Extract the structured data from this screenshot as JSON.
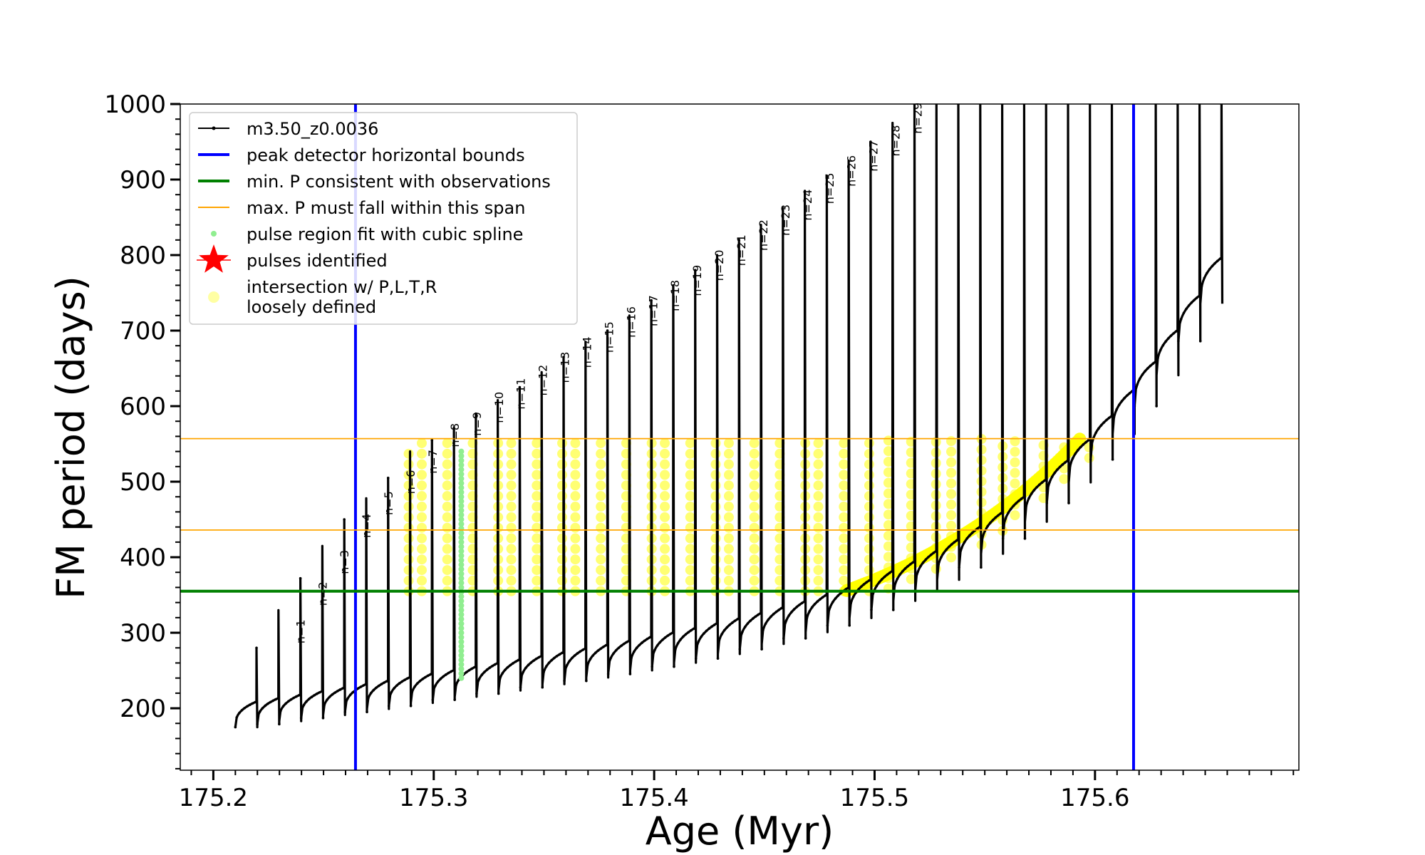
{
  "chart_data": {
    "type": "line",
    "title": "",
    "xlabel": "Age (Myr)",
    "ylabel": "FM period (days)",
    "xlim": [
      175.185,
      175.6925
    ],
    "ylim": [
      118,
      1000
    ],
    "xticks": [
      "175.2",
      "175.3",
      "175.4",
      "175.5",
      "175.6"
    ],
    "xtick_values": [
      175.2,
      175.3,
      175.4,
      175.5,
      175.6
    ],
    "yticks": [
      "200",
      "300",
      "400",
      "500",
      "600",
      "700",
      "800",
      "900",
      "1000"
    ],
    "ytick_values": [
      200,
      300,
      400,
      500,
      600,
      700,
      800,
      900,
      1000
    ],
    "series": [
      {
        "name": "m3.50_z0.0036",
        "color": "#000000",
        "style": "black line with small dot markers",
        "age_start": 175.21,
        "age_pulse_spacing": 0.00995,
        "base_period_start": 195,
        "pulse_spike_peaks": [
          280,
          330,
          372,
          415,
          450,
          478,
          505,
          540,
          555,
          572,
          590,
          608,
          625,
          645,
          665,
          685,
          700,
          720,
          740,
          760,
          780,
          800,
          820,
          840,
          862,
          885,
          905,
          925,
          950,
          975
        ],
        "final_age": 175.655
      }
    ],
    "pulse_labels": [
      "n=1",
      "n=2",
      "n=3",
      "n=4",
      "n=5",
      "n=6",
      "n=7",
      "n=8",
      "n=9",
      "n=10",
      "n=11",
      "n=12",
      "n=13",
      "n=14",
      "n=15",
      "n=16",
      "n=17",
      "n=18",
      "n=19",
      "n=20",
      "n=21",
      "n=22",
      "n=23",
      "n=24",
      "n=25",
      "n=26",
      "n=27",
      "n=28",
      "n=29"
    ],
    "pulse_label_ages": [
      175.242,
      175.252,
      175.262,
      175.272,
      175.282,
      175.292,
      175.302,
      175.312,
      175.322,
      175.332,
      175.342,
      175.352,
      175.362,
      175.372,
      175.382,
      175.392,
      175.402,
      175.412,
      175.422,
      175.432,
      175.442,
      175.452,
      175.462,
      175.472,
      175.482,
      175.492,
      175.502,
      175.512,
      175.522
    ],
    "pulse_label_periods": [
      280,
      330,
      372,
      420,
      450,
      478,
      505,
      540,
      555,
      572,
      590,
      608,
      625,
      645,
      665,
      685,
      700,
      720,
      740,
      760,
      780,
      800,
      820,
      840,
      862,
      885,
      905,
      925,
      955
    ],
    "vertical_lines": {
      "label": "peak detector horizontal bounds",
      "color": "#0000ff",
      "x": [
        175.2645,
        175.6175
      ]
    },
    "horizontal_lines": [
      {
        "label": "min. P consistent with observations",
        "color": "#008000",
        "y": 355
      },
      {
        "label": "max. P must fall within this span",
        "color": "#ffa500",
        "y": 436
      },
      {
        "label": "max. P must fall within this span",
        "color": "#ffa500",
        "y": 557
      }
    ],
    "spline_region": {
      "label": "pulse region fit with cubic spline",
      "color": "#90ee90",
      "x": 175.3125,
      "y_range": [
        240,
        540
      ]
    },
    "intersection_region": {
      "label": "intersection w/ P,L,T,R\nloosely defined",
      "color": "#ffff00",
      "x_range": [
        175.27,
        175.62
      ],
      "y_range": [
        355,
        557
      ]
    },
    "legend": {
      "position": "top-left",
      "entries": [
        {
          "label": "m3.50_z0.0036",
          "marker": "line-dot",
          "color": "#000000"
        },
        {
          "label": "peak detector horizontal bounds",
          "marker": "line",
          "color": "#0000ff"
        },
        {
          "label": "min. P consistent with observations",
          "marker": "line",
          "color": "#008000"
        },
        {
          "label": "max. P must fall within this span",
          "marker": "thin-line",
          "color": "#ffa500"
        },
        {
          "label": "pulse region fit with cubic spline",
          "marker": "dot",
          "color": "#90ee90"
        },
        {
          "label": "pulses identified",
          "marker": "star",
          "color": "#ff0000"
        },
        {
          "label": "intersection w/ P,L,T,R",
          "label2": "loosely defined",
          "marker": "circle",
          "color": "#ffff66"
        }
      ]
    }
  }
}
